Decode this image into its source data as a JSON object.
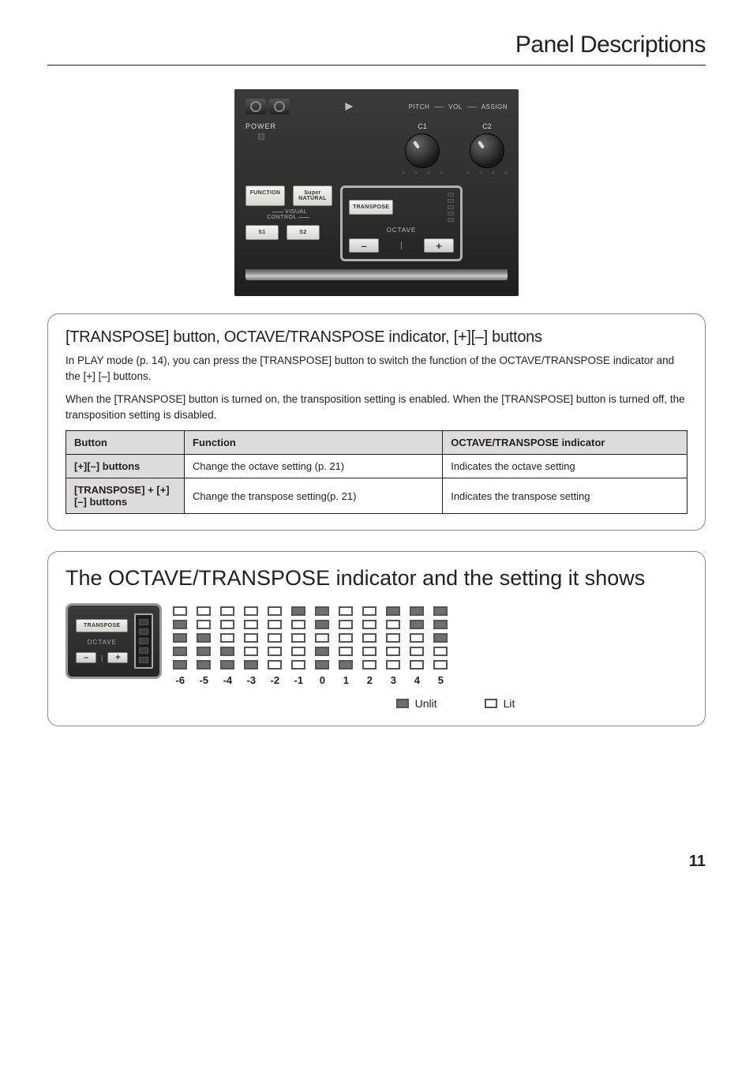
{
  "page": {
    "title": "Panel Descriptions",
    "number": "11"
  },
  "hw": {
    "top_labels": {
      "pitch": "PITCH",
      "vol": "VOL",
      "assign": "ASSIGN"
    },
    "power": "POWER",
    "knob1": "C1",
    "knob2": "C2",
    "btn_function": "FUNCTION",
    "btn_supernatural_l1": "Super",
    "btn_supernatural_l2": "NATURAL",
    "visual_control": "VISUAL\nCONTROL",
    "btn_s1": "S1",
    "btn_s2": "S2",
    "btn_transpose": "TRANSPOSE",
    "octave": "OCTAVE",
    "minus": "–",
    "plus": "+"
  },
  "section1": {
    "heading": "[TRANSPOSE] button, OCTAVE/TRANSPOSE indicator, [+][–] buttons",
    "p1": "In PLAY mode (p. 14), you can press the [TRANSPOSE] button to switch the function of the OCTAVE/TRANSPOSE indicator and the [+] [–] buttons.",
    "p2": "When the [TRANSPOSE] button is turned on, the transposition setting is enabled. When the [TRANSPOSE] button is turned off, the transposition setting is disabled.",
    "table": {
      "headers": {
        "c1": "Button",
        "c2": "Function",
        "c3": "OCTAVE/TRANSPOSE indicator"
      },
      "rows": [
        {
          "c1": "[+][–] buttons",
          "c2": "Change the octave setting (p. 21)",
          "c3": "Indicates the octave setting"
        },
        {
          "c1": "[TRANSPOSE] + [+][–] buttons",
          "c2": "Change the transpose setting(p. 21)",
          "c3": "Indicates the transpose setting"
        }
      ]
    }
  },
  "section2": {
    "heading": "The OCTAVE/TRANSPOSE indicator and the setting it shows",
    "panel": {
      "transpose": "TRANSPOSE",
      "octave": "OCTAVE",
      "minus": "–",
      "plus": "+"
    },
    "columns": [
      {
        "num": "-6",
        "leds": [
          "lit",
          "unlit",
          "unlit",
          "unlit",
          "unlit"
        ]
      },
      {
        "num": "-5",
        "leds": [
          "lit",
          "lit",
          "unlit",
          "unlit",
          "unlit"
        ]
      },
      {
        "num": "-4",
        "leds": [
          "lit",
          "lit",
          "lit",
          "unlit",
          "unlit"
        ]
      },
      {
        "num": "-3",
        "leds": [
          "lit",
          "lit",
          "lit",
          "lit",
          "unlit"
        ]
      },
      {
        "num": "-2",
        "leds": [
          "lit",
          "lit",
          "lit",
          "lit",
          "lit"
        ]
      },
      {
        "num": "-1",
        "leds": [
          "unlit",
          "lit",
          "lit",
          "lit",
          "lit"
        ]
      },
      {
        "num": "0",
        "leds": [
          "unlit",
          "unlit",
          "lit",
          "unlit",
          "unlit"
        ]
      },
      {
        "num": "1",
        "leds": [
          "lit",
          "lit",
          "lit",
          "lit",
          "unlit"
        ]
      },
      {
        "num": "2",
        "leds": [
          "lit",
          "lit",
          "lit",
          "lit",
          "lit"
        ]
      },
      {
        "num": "3",
        "leds": [
          "unlit",
          "lit",
          "lit",
          "lit",
          "lit"
        ]
      },
      {
        "num": "4",
        "leds": [
          "unlit",
          "unlit",
          "lit",
          "lit",
          "lit"
        ]
      },
      {
        "num": "5",
        "leds": [
          "unlit",
          "unlit",
          "unlit",
          "lit",
          "lit"
        ]
      }
    ],
    "legend": {
      "unlit": "Unlit",
      "lit": "Lit"
    }
  },
  "colors": {
    "text": "#231f20",
    "box_border": "#8a8a8a",
    "table_header_bg": "#dcdcdc",
    "led_lit": "#ffffff",
    "led_unlit": "#6f6f6f",
    "led_border": "#555555"
  }
}
